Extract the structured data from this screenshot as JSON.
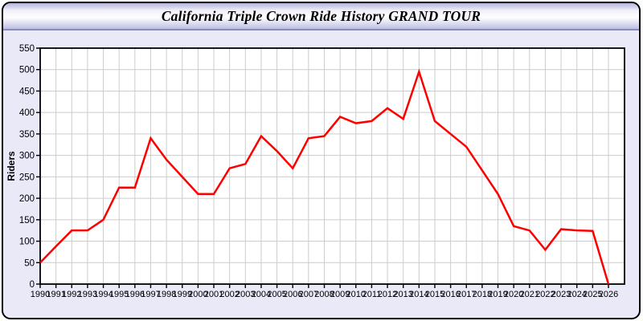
{
  "window": {
    "title": "California Triple Crown Ride History GRAND TOUR"
  },
  "chart_data": {
    "type": "line",
    "title": "California Triple Crown Ride History GRAND TOUR",
    "xlabel": "",
    "ylabel": "Riders",
    "ylim": [
      0,
      550
    ],
    "ytick_step": 50,
    "grid": true,
    "legend_position": "none",
    "x": [
      1990,
      1991,
      1992,
      1993,
      1994,
      1995,
      1996,
      1997,
      1998,
      1999,
      2000,
      2001,
      2002,
      2003,
      2004,
      2005,
      2006,
      2007,
      2008,
      2009,
      2010,
      2011,
      2012,
      2013,
      2014,
      2015,
      2016,
      2017,
      2018,
      2019,
      2020,
      2021,
      2022,
      2023,
      2024,
      2025,
      2026
    ],
    "series": [
      {
        "name": "Riders",
        "color": "#ff0000",
        "values": [
          50,
          88,
          125,
          125,
          150,
          225,
          225,
          340,
          290,
          250,
          210,
          210,
          270,
          280,
          345,
          310,
          270,
          340,
          345,
          390,
          375,
          380,
          410,
          385,
          495,
          380,
          350,
          320,
          265,
          210,
          135,
          125,
          80,
          128,
          125,
          124,
          0
        ]
      }
    ]
  },
  "colors": {
    "page_bg": "#ffffff",
    "body_bg": "#e9e9f7",
    "plot_bg": "#ffffff",
    "grid": "#cccccc",
    "axis": "#000000",
    "line": "#ff0000",
    "titlebar_border": "#8a8ac2"
  }
}
